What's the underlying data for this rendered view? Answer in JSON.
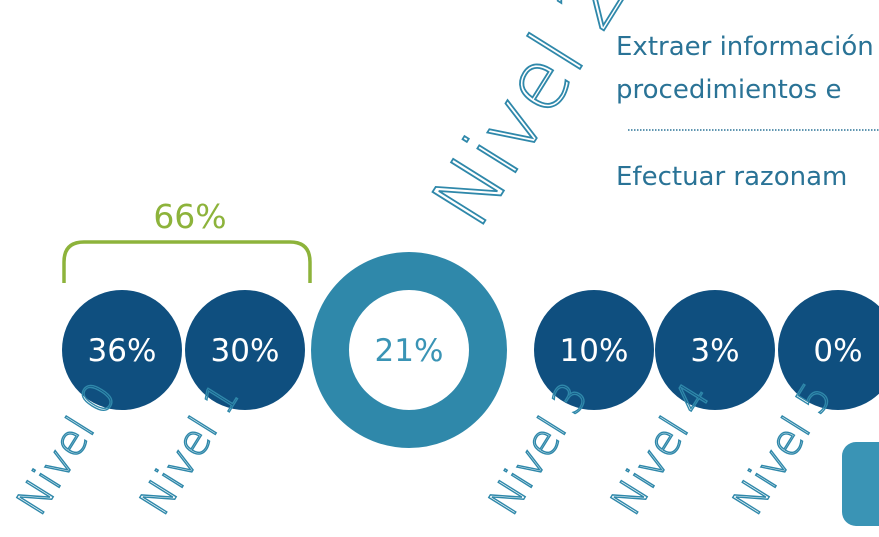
{
  "colors": {
    "dark_blue": "#0f4f7f",
    "mid_blue": "#2f88aa",
    "light_blue": "#3a94b5",
    "green": "#8db33b",
    "text_blue": "#2a7396"
  },
  "levels": [
    {
      "label": "Nivel 0",
      "percent": "36%"
    },
    {
      "label": "Nivel 1",
      "percent": "30%"
    },
    {
      "label": "Nivel 2",
      "percent": "21%"
    },
    {
      "label": "Nivel 3",
      "percent": "10%"
    },
    {
      "label": "Nivel 4",
      "percent": "3%"
    },
    {
      "label": "Nivel 5",
      "percent": "0%"
    }
  ],
  "bracket": {
    "percent": "66%"
  },
  "description": {
    "line1": "Extraer información",
    "line2": "procedimientos e",
    "line3": "Efectuar razonam"
  }
}
